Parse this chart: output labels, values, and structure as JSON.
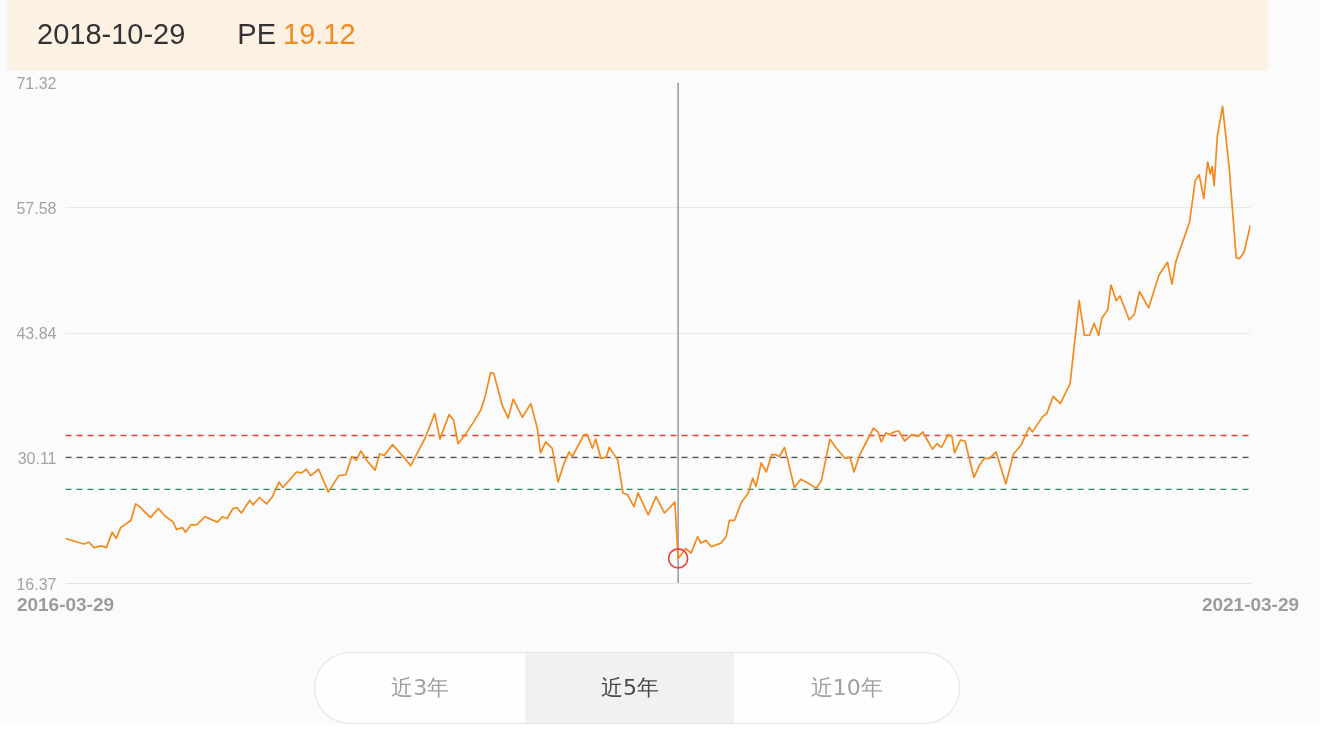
{
  "chart_data": {
    "type": "line",
    "x": [
      "2016-03-29",
      "2016-04-26",
      "2016-05-04",
      "2016-05-12",
      "2016-05-23",
      "2016-05-31",
      "2016-06-09",
      "2016-06-15",
      "2016-06-22",
      "2016-07-08",
      "2016-07-15",
      "2016-07-21",
      "2016-08-07",
      "2016-08-19",
      "2016-08-29",
      "2016-09-11",
      "2016-09-16",
      "2016-09-25",
      "2016-09-30",
      "2016-10-08",
      "2016-10-17",
      "2016-10-30",
      "2016-11-18",
      "2016-11-26",
      "2016-12-03",
      "2016-12-12",
      "2016-12-18",
      "2016-12-25",
      "2017-01-07",
      "2017-01-12",
      "2017-01-22",
      "2017-02-02",
      "2017-02-10",
      "2017-02-21",
      "2017-02-27",
      "2017-03-20",
      "2017-03-28",
      "2017-04-04",
      "2017-04-11",
      "2017-04-23",
      "2017-05-08",
      "2017-05-24",
      "2017-06-04",
      "2017-06-13",
      "2017-06-20",
      "2017-06-27",
      "2017-07-07",
      "2017-07-19",
      "2017-07-26",
      "2017-08-02",
      "2017-08-15",
      "2017-08-30",
      "2017-09-12",
      "2017-09-20",
      "2017-10-04",
      "2017-10-19",
      "2017-10-27",
      "2017-11-10",
      "2017-11-17",
      "2017-11-24",
      "2017-12-05",
      "2017-12-18",
      "2017-12-29",
      "2018-01-05",
      "2018-01-13",
      "2018-01-18",
      "2018-01-31",
      "2018-02-09",
      "2018-02-17",
      "2018-03-03",
      "2018-03-16",
      "2018-03-26",
      "2018-03-31",
      "2018-04-08",
      "2018-04-18",
      "2018-04-27",
      "2018-05-06",
      "2018-05-14",
      "2018-05-19",
      "2018-06-06",
      "2018-06-11",
      "2018-06-19",
      "2018-06-24",
      "2018-07-02",
      "2018-07-10",
      "2018-07-15",
      "2018-07-28",
      "2018-08-05",
      "2018-08-12",
      "2018-08-22",
      "2018-08-28",
      "2018-09-13",
      "2018-09-25",
      "2018-10-08",
      "2018-10-24",
      "2018-10-29",
      "2018-11-10",
      "2018-11-18",
      "2018-11-28",
      "2018-12-03",
      "2018-12-11",
      "2018-12-19",
      "2019-01-03",
      "2019-01-11",
      "2019-01-16",
      "2019-01-24",
      "2019-02-03",
      "2019-02-14",
      "2019-02-21",
      "2019-02-26",
      "2019-03-06",
      "2019-03-14",
      "2019-03-22",
      "2019-03-29",
      "2019-04-03",
      "2019-04-11",
      "2019-04-16",
      "2019-04-26",
      "2019-05-06",
      "2019-05-17",
      "2019-05-30",
      "2019-06-07",
      "2019-06-20",
      "2019-06-30",
      "2019-07-13",
      "2019-07-21",
      "2019-07-27",
      "2019-08-05",
      "2019-08-18",
      "2019-08-26",
      "2019-09-02",
      "2019-09-07",
      "2019-09-14",
      "2019-09-19",
      "2019-09-27",
      "2019-10-04",
      "2019-10-13",
      "2019-10-24",
      "2019-11-03",
      "2019-11-10",
      "2019-11-17",
      "2019-11-25",
      "2019-12-02",
      "2019-12-09",
      "2019-12-19",
      "2019-12-25",
      "2019-12-29",
      "2020-01-07",
      "2020-01-14",
      "2020-01-28",
      "2020-02-05",
      "2020-02-13",
      "2020-02-21",
      "2020-03-02",
      "2020-03-17",
      "2020-03-29",
      "2020-04-09",
      "2020-04-22",
      "2020-04-27",
      "2020-05-13",
      "2020-05-19",
      "2020-05-29",
      "2020-06-09",
      "2020-06-24",
      "2020-07-08",
      "2020-07-16",
      "2020-07-24",
      "2020-07-31",
      "2020-08-07",
      "2020-08-12",
      "2020-08-21",
      "2020-08-26",
      "2020-09-03",
      "2020-09-09",
      "2020-09-23",
      "2020-10-01",
      "2020-10-09",
      "2020-10-23",
      "2020-11-08",
      "2020-11-21",
      "2020-11-28",
      "2020-12-04",
      "2020-12-25",
      "2021-01-03",
      "2021-01-09",
      "2021-01-16",
      "2021-01-22",
      "2021-01-26",
      "2021-01-29",
      "2021-02-01",
      "2021-02-06",
      "2021-02-14",
      "2021-02-24",
      "2021-03-07",
      "2021-03-12",
      "2021-03-19",
      "2021-03-29"
    ],
    "series": [
      {
        "color": "#f28a1d",
        "values": [
          21.3,
          20.7,
          20.9,
          20.3,
          20.5,
          20.3,
          22.0,
          21.3,
          22.5,
          23.3,
          25.1,
          24.8,
          23.6,
          24.6,
          23.8,
          23.1,
          22.3,
          22.5,
          22.0,
          22.8,
          22.8,
          23.7,
          23.1,
          23.7,
          23.5,
          24.6,
          24.7,
          24.1,
          25.5,
          25.0,
          25.8,
          25.1,
          25.8,
          27.5,
          26.9,
          28.6,
          28.5,
          28.9,
          28.2,
          28.9,
          26.4,
          28.2,
          28.3,
          30.3,
          29.9,
          30.9,
          29.8,
          28.8,
          30.6,
          30.4,
          31.6,
          30.4,
          29.3,
          30.4,
          32.3,
          35.0,
          32.2,
          34.9,
          34.3,
          31.7,
          32.7,
          34.1,
          35.4,
          37.0,
          39.5,
          39.4,
          35.9,
          34.5,
          36.6,
          34.6,
          36.1,
          33.4,
          30.7,
          31.9,
          31.2,
          27.5,
          29.5,
          30.8,
          30.3,
          32.7,
          32.7,
          31.2,
          32.2,
          30.1,
          30.2,
          31.3,
          29.9,
          26.3,
          26.1,
          24.8,
          26.3,
          23.9,
          25.9,
          24.1,
          25.3,
          19.12,
          20.2,
          19.7,
          21.5,
          20.8,
          21.1,
          20.4,
          20.8,
          21.5,
          23.3,
          23.3,
          25.2,
          26.3,
          27.9,
          27.0,
          29.6,
          28.6,
          30.5,
          30.5,
          30.3,
          31.3,
          29.9,
          26.9,
          27.8,
          27.4,
          26.8,
          27.7,
          32.2,
          31.2,
          30.1,
          30.2,
          28.6,
          30.5,
          32.3,
          33.4,
          33.0,
          31.9,
          32.9,
          32.7,
          33.0,
          33.1,
          32.0,
          32.7,
          32.5,
          33.0,
          32.1,
          31.1,
          31.7,
          31.3,
          32.7,
          32.5,
          30.7,
          32.1,
          32.0,
          28.0,
          29.3,
          30.1,
          30.1,
          30.8,
          27.3,
          30.6,
          31.5,
          33.5,
          33.0,
          34.7,
          35.0,
          36.9,
          36.1,
          38.3,
          47.4,
          43.6,
          43.6,
          44.9,
          43.6,
          45.5,
          46.4,
          49.1,
          47.4,
          47.9,
          45.3,
          45.9,
          48.4,
          46.6,
          50.2,
          51.6,
          49.2,
          51.7,
          56.0,
          60.6,
          61.2,
          58.6,
          62.6,
          61.3,
          62.1,
          60.0,
          65.5,
          68.7,
          62.1,
          52.1,
          52.0,
          52.7,
          55.7
        ]
      },
      {
        "type": "scatter",
        "x": [
          "2018-10-29"
        ],
        "values": [
          19.12
        ],
        "color": "#e8473d",
        "marker": "circle"
      }
    ],
    "xlim": [
      "2016-03-29",
      "2021-03-29"
    ],
    "xticks": [
      "2016-03-29",
      "2021-03-29"
    ],
    "ylim": [
      16.37,
      71.32
    ],
    "yticks": [
      16.37,
      30.11,
      43.84,
      57.58,
      71.32
    ],
    "grid": "y",
    "ref_lines": [
      {
        "axis": "y",
        "value": 32.6,
        "color": "#e2432f",
        "line_style": "dashed"
      },
      {
        "axis": "y",
        "value": 30.2,
        "color": "#505050",
        "line_style": "dashed"
      },
      {
        "axis": "y",
        "value": 26.7,
        "color": "#2a8a5c",
        "line_style": "dashed"
      },
      {
        "axis": "x",
        "value": "2018-10-29",
        "color": "#8a8a8a",
        "line_style": "solid"
      }
    ],
    "annotations": [
      "2018-10-29",
      "PE",
      "19.12",
      "近3年",
      "近5年",
      "近10年"
    ]
  }
}
